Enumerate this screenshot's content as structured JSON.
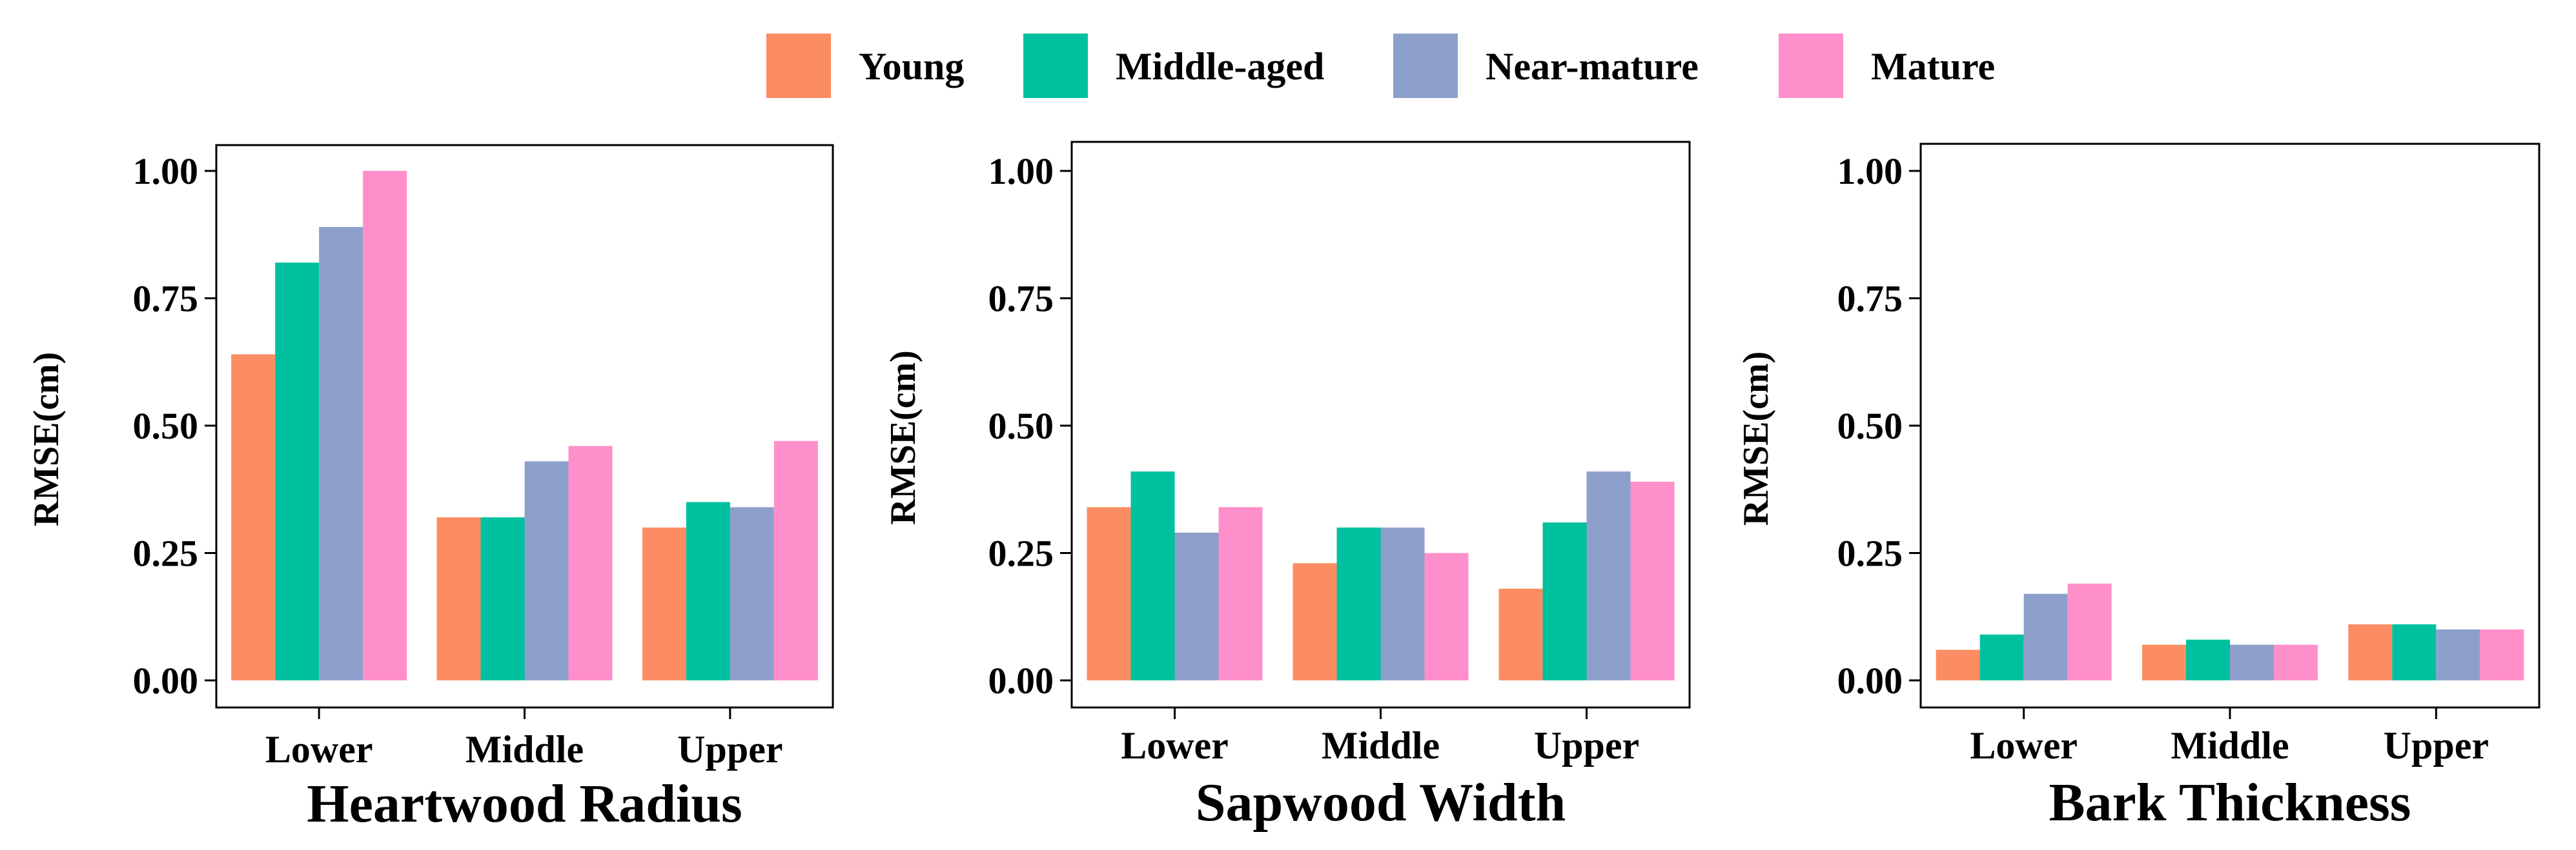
{
  "legend": [
    {
      "label": "Young",
      "color": "#FC8D62"
    },
    {
      "label": "Middle-aged",
      "color": "#00C19F"
    },
    {
      "label": "Near-mature",
      "color": "#8DA0CB"
    },
    {
      "label": "Mature",
      "color": "#FF8FCB"
    }
  ],
  "chart_data": [
    {
      "type": "bar",
      "title": "Heartwood Radius",
      "ylabel": "RMSE(cm)",
      "xlabel": "",
      "categories": [
        "Lower",
        "Middle",
        "Upper"
      ],
      "ylim": [
        0,
        1.0
      ],
      "yticks": [
        "0.00",
        "0.25",
        "0.50",
        "0.75",
        "1.00"
      ],
      "series": [
        {
          "name": "Young",
          "values": [
            0.64,
            0.32,
            0.3
          ]
        },
        {
          "name": "Middle-aged",
          "values": [
            0.82,
            0.32,
            0.35
          ]
        },
        {
          "name": "Near-mature",
          "values": [
            0.89,
            0.43,
            0.34
          ]
        },
        {
          "name": "Mature",
          "values": [
            1.0,
            0.46,
            0.47
          ]
        }
      ]
    },
    {
      "type": "bar",
      "title": "Sapwood Width",
      "ylabel": "RMSE(cm)",
      "xlabel": "",
      "categories": [
        "Lower",
        "Middle",
        "Upper"
      ],
      "ylim": [
        0,
        1.0
      ],
      "yticks": [
        "0.00",
        "0.25",
        "0.50",
        "0.75",
        "1.00"
      ],
      "series": [
        {
          "name": "Young",
          "values": [
            0.34,
            0.23,
            0.18
          ]
        },
        {
          "name": "Middle-aged",
          "values": [
            0.41,
            0.3,
            0.31
          ]
        },
        {
          "name": "Near-mature",
          "values": [
            0.29,
            0.3,
            0.41
          ]
        },
        {
          "name": "Mature",
          "values": [
            0.34,
            0.25,
            0.39
          ]
        }
      ]
    },
    {
      "type": "bar",
      "title": "Bark Thickness",
      "ylabel": "RMSE(cm)",
      "xlabel": "",
      "categories": [
        "Lower",
        "Middle",
        "Upper"
      ],
      "ylim": [
        0,
        1.0
      ],
      "yticks": [
        "0.00",
        "0.25",
        "0.50",
        "0.75",
        "1.00"
      ],
      "series": [
        {
          "name": "Young",
          "values": [
            0.06,
            0.07,
            0.11
          ]
        },
        {
          "name": "Middle-aged",
          "values": [
            0.09,
            0.08,
            0.11
          ]
        },
        {
          "name": "Near-mature",
          "values": [
            0.17,
            0.07,
            0.1
          ]
        },
        {
          "name": "Mature",
          "values": [
            0.19,
            0.07,
            0.1
          ]
        }
      ]
    }
  ]
}
